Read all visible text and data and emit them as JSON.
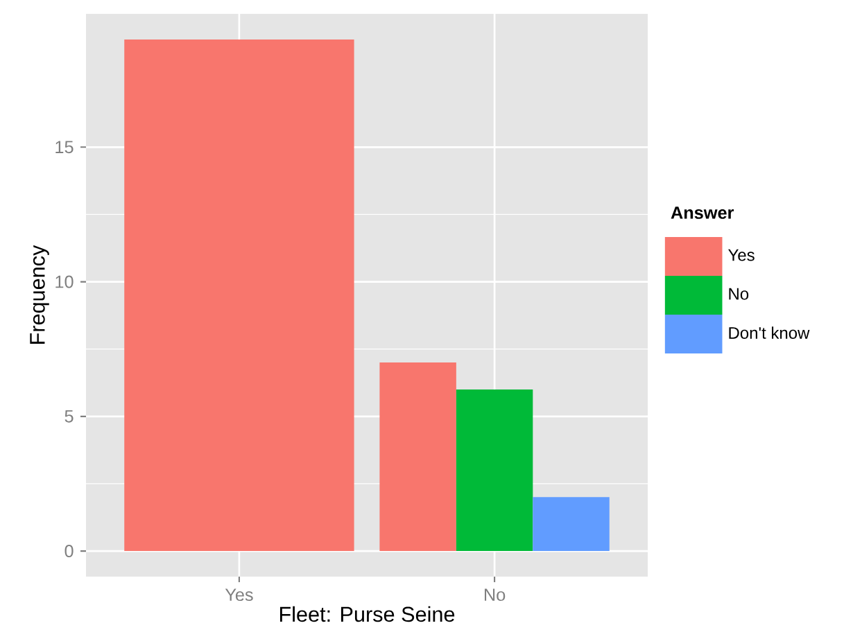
{
  "chart_data": {
    "type": "bar",
    "xlabel": "Fleet: Purse Seine",
    "ylabel": "Frequency",
    "legend_title": "Answer",
    "categories": [
      "Yes",
      "No"
    ],
    "series": [
      {
        "name": "Yes",
        "color": "#f8766d",
        "values": [
          19,
          7
        ]
      },
      {
        "name": "No",
        "color": "#00ba38",
        "values": [
          null,
          6
        ]
      },
      {
        "name": "Don't know",
        "color": "#619cff",
        "values": [
          null,
          2
        ]
      }
    ],
    "ylim": [
      -0.95,
      19.95
    ],
    "yticks": [
      0,
      5,
      10,
      15
    ],
    "grid": true,
    "legend": "right"
  }
}
